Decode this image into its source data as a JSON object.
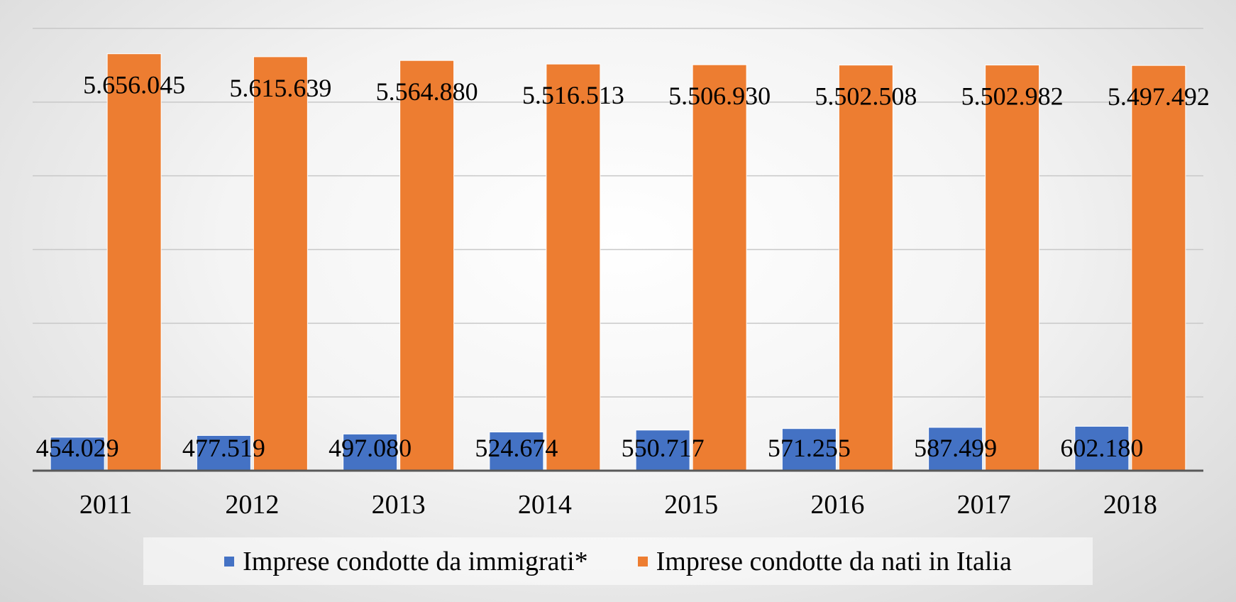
{
  "chart_data": {
    "type": "bar",
    "categories": [
      "2011",
      "2012",
      "2013",
      "2014",
      "2015",
      "2016",
      "2017",
      "2018"
    ],
    "series": [
      {
        "name": "Imprese condotte da immigrati*",
        "color": "#4472c4",
        "values": [
          454029,
          477519,
          497080,
          524674,
          550717,
          571255,
          587499,
          602180
        ],
        "labels": [
          "454.029",
          "477.519",
          "497.080",
          "524.674",
          "550.717",
          "571.255",
          "587.499",
          "602.180"
        ]
      },
      {
        "name": "Imprese condotte da nati in Italia",
        "color": "#ed7d31",
        "values": [
          5656045,
          5615639,
          5564880,
          5516513,
          5506930,
          5502508,
          5502982,
          5497492
        ],
        "labels": [
          "5.656.045",
          "5.615.639",
          "5.564.880",
          "5.516.513",
          "5.506.930",
          "5.502.508",
          "5.502.982",
          "5.497.492"
        ]
      }
    ],
    "ylim": [
      0,
      6000000
    ],
    "grid": true,
    "legend": "bottom"
  }
}
